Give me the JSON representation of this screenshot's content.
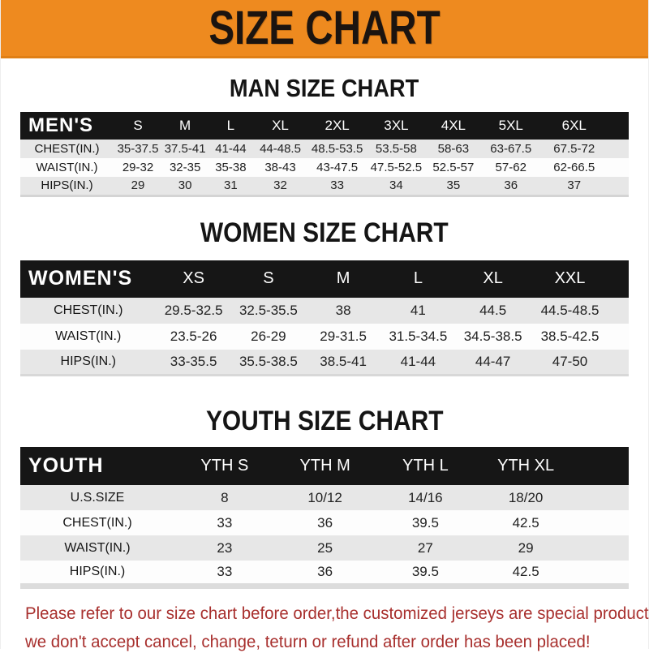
{
  "banner": {
    "title": "SIZE CHART",
    "bg_color": "#EE8A1F",
    "text_color": "#1B1410"
  },
  "sections": [
    {
      "heading": "MAN SIZE CHART",
      "table": {
        "header_label": "MEN'S",
        "columns": [
          "S",
          "M",
          "L",
          "XL",
          "2XL",
          "3XL",
          "4XL",
          "5XL",
          "6XL"
        ],
        "rows": [
          {
            "label": "CHEST(IN.)",
            "values": [
              "35-37.5",
              "37.5-41",
              "41-44",
              "44-48.5",
              "48.5-53.5",
              "53.5-58",
              "58-63",
              "63-67.5",
              "67.5-72"
            ]
          },
          {
            "label": "WAIST(IN.)",
            "values": [
              "29-32",
              "32-35",
              "35-38",
              "38-43",
              "43-47.5",
              "47.5-52.5",
              "52.5-57",
              "57-62",
              "62-66.5"
            ]
          },
          {
            "label": "HIPS(IN.)",
            "values": [
              "29",
              "30",
              "31",
              "32",
              "33",
              "34",
              "35",
              "36",
              "37"
            ]
          }
        ]
      }
    },
    {
      "heading": "WOMEN SIZE CHART",
      "table": {
        "header_label": "WOMEN'S",
        "columns": [
          "XS",
          "S",
          "M",
          "L",
          "XL",
          "XXL"
        ],
        "rows": [
          {
            "label": "CHEST(IN.)",
            "values": [
              "29.5-32.5",
              "32.5-35.5",
              "38",
              "41",
              "44.5",
              "44.5-48.5"
            ]
          },
          {
            "label": "WAIST(IN.)",
            "values": [
              "23.5-26",
              "26-29",
              "29-31.5",
              "31.5-34.5",
              "34.5-38.5",
              "38.5-42.5"
            ]
          },
          {
            "label": "HIPS(IN.)",
            "values": [
              "33-35.5",
              "35.5-38.5",
              "38.5-41",
              "41-44",
              "44-47",
              "47-50"
            ]
          }
        ]
      }
    },
    {
      "heading": "YOUTH SIZE CHART",
      "table": {
        "header_label": "YOUTH",
        "columns": [
          "YTH S",
          "YTH M",
          "YTH L",
          "YTH XL"
        ],
        "rows": [
          {
            "label": "U.S.SIZE",
            "values": [
              "8",
              "10/12",
              "14/16",
              "18/20"
            ]
          },
          {
            "label": "CHEST(IN.)",
            "values": [
              "33",
              "36",
              "39.5",
              "42.5"
            ]
          },
          {
            "label": "WAIST(IN.)",
            "values": [
              "23",
              "25",
              "27",
              "29"
            ]
          },
          {
            "label": "HIPS(IN.)",
            "values": [
              "33",
              "36",
              "39.5",
              "42.5"
            ]
          }
        ]
      }
    }
  ],
  "footer": {
    "text_color": "#A8302E",
    "lines": [
      "Please refer to our size chart before order,the customized jerseys are special products,",
      "we don't accept cancel, change, teturn or refund after order has been placed!"
    ]
  }
}
